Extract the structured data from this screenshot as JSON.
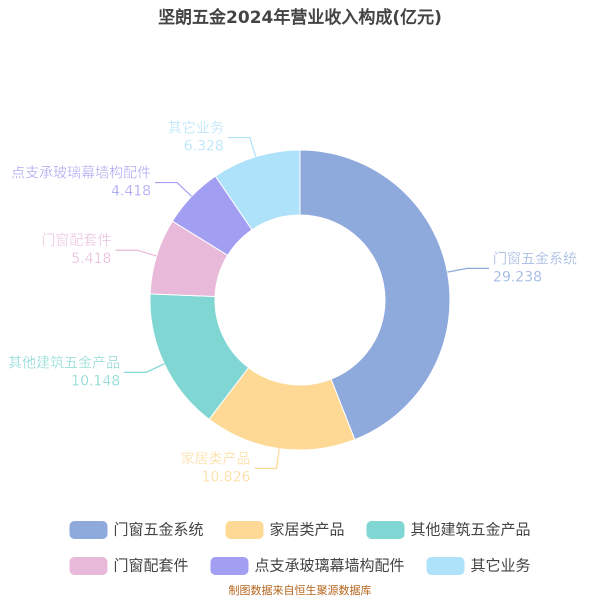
{
  "chart_data": {
    "type": "pie",
    "title": "坚朗五金2024年营业收入构成(亿元)",
    "categories": [
      "门窗五金系统",
      "家居类产品",
      "其他建筑五金产品",
      "门窗配套件",
      "点支承玻璃幕墙构配件",
      "其它业务"
    ],
    "values": [
      29.238,
      10.826,
      10.148,
      5.418,
      4.418,
      6.328
    ],
    "colors": [
      "#8eaadc",
      "#fdd995",
      "#80d6d2",
      "#e8b9d9",
      "#a29ff2",
      "#aee1fa"
    ],
    "source": "制图数据来自恒生聚源数据库"
  }
}
